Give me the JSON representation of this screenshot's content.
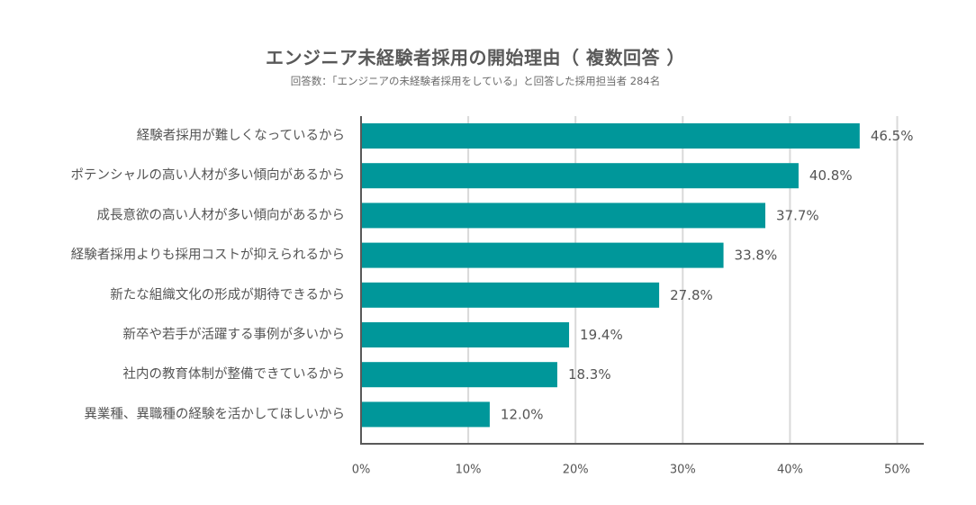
{
  "chart_data": {
    "type": "bar",
    "orientation": "horizontal",
    "title": "エンジニア未経験者採用の開始理由（ 複数回答 ）",
    "subtitle": "回答数：「エンジニアの未経験者採用をしている」と回答した採用担当者 284名",
    "categories": [
      "経験者採用が難しくなっているから",
      "ポテンシャルの高い人材が多い傾向があるから",
      "成長意欲の高い人材が多い傾向があるから",
      "経験者採用よりも採用コストが抑えられるから",
      "新たな組織文化の形成が期待できるから",
      "新卒や若手が活躍する事例が多いから",
      "社内の教育体制が整備できているから",
      "異業種、異職種の経験を活かしてほしいから"
    ],
    "values": [
      46.5,
      40.8,
      37.7,
      33.8,
      27.8,
      19.4,
      18.3,
      12.0
    ],
    "value_labels": [
      "46.5%",
      "40.8%",
      "37.7%",
      "33.8%",
      "27.8%",
      "19.4%",
      "18.3%",
      "12.0%"
    ],
    "xlim": [
      0,
      50
    ],
    "xticks": [
      0,
      10,
      20,
      30,
      40,
      50
    ],
    "xtick_labels": [
      "0%",
      "10%",
      "20%",
      "30%",
      "40%",
      "50%"
    ],
    "xlabel": "",
    "ylabel": "",
    "grid": true,
    "colors": {
      "bar": "#00979a",
      "grid": "#d9d9d9",
      "axis": "#595959",
      "text": "#555555"
    }
  }
}
